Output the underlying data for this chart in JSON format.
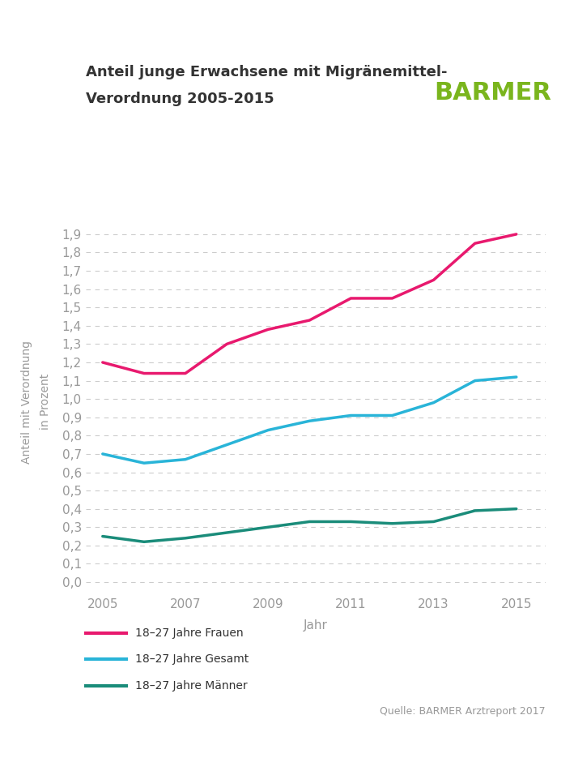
{
  "title_line1": "Anteil junge Erwachsene mit Migränemittel-",
  "title_line2": "Verordnung 2005-2015",
  "barmer_text": "BARMER",
  "xlabel": "Jahr",
  "ylabel": "Anteil mit Verordnung\nin Prozent",
  "source": "Quelle: BARMER Arztreport 2017",
  "years": [
    2005,
    2006,
    2007,
    2008,
    2009,
    2010,
    2011,
    2012,
    2013,
    2014,
    2015
  ],
  "frauen": [
    1.2,
    1.14,
    1.14,
    1.3,
    1.38,
    1.43,
    1.55,
    1.55,
    1.65,
    1.85,
    1.9
  ],
  "gesamt": [
    0.7,
    0.65,
    0.67,
    0.75,
    0.83,
    0.88,
    0.91,
    0.91,
    0.98,
    1.1,
    1.12
  ],
  "maenner": [
    0.25,
    0.22,
    0.24,
    0.27,
    0.3,
    0.33,
    0.33,
    0.32,
    0.33,
    0.39,
    0.4
  ],
  "frauen_color": "#e8196e",
  "gesamt_color": "#29b4d8",
  "maenner_color": "#1a8c7a",
  "barmer_color": "#7ab51d",
  "yticks": [
    0.0,
    0.1,
    0.2,
    0.3,
    0.4,
    0.5,
    0.6,
    0.7,
    0.8,
    0.9,
    1.0,
    1.1,
    1.2,
    1.3,
    1.4,
    1.5,
    1.6,
    1.7,
    1.8,
    1.9
  ],
  "xticks": [
    2005,
    2007,
    2009,
    2011,
    2013,
    2015
  ],
  "background_color": "#ffffff",
  "grid_color": "#cccccc",
  "tick_color": "#999999",
  "text_color": "#333333",
  "label_frauen": "18–27 Jahre Frauen",
  "label_gesamt": "18–27 Jahre Gesamt",
  "label_maenner": "18–27 Jahre Männer",
  "line_width": 2.5
}
